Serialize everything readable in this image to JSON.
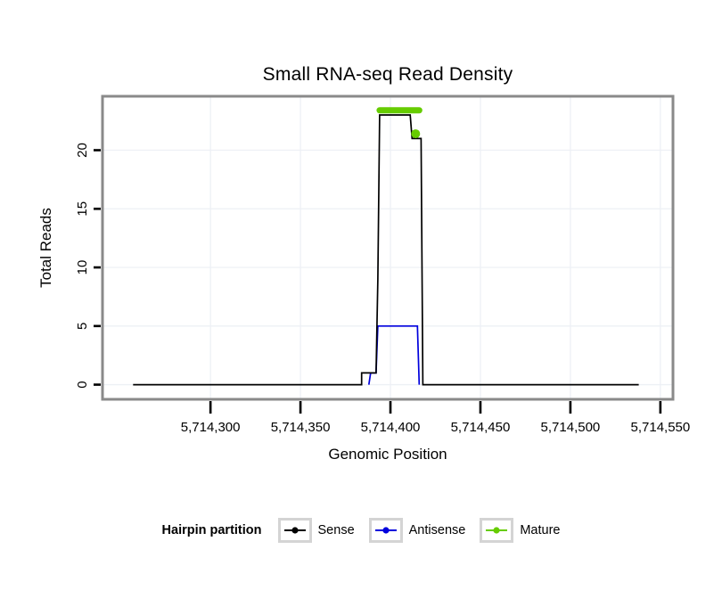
{
  "chart_data": {
    "type": "line",
    "title": "Small RNA-seq Read Density",
    "xlabel": "Genomic Position",
    "ylabel": "Total Reads",
    "xlim": [
      5714240,
      5714557
    ],
    "ylim": [
      -1.25,
      24.6
    ],
    "grid": true,
    "grid_color": "#edf0f5",
    "panel_border_color": "#8a8a8a",
    "x_ticks": [
      {
        "value": 5714300,
        "label": "5,714,300"
      },
      {
        "value": 5714350,
        "label": "5,714,350"
      },
      {
        "value": 5714400,
        "label": "5,714,400"
      },
      {
        "value": 5714450,
        "label": "5,714,450"
      },
      {
        "value": 5714500,
        "label": "5,714,500"
      },
      {
        "value": 5714550,
        "label": "5,714,550"
      }
    ],
    "y_ticks": [
      {
        "value": 0,
        "label": "0"
      },
      {
        "value": 5,
        "label": "5"
      },
      {
        "value": 10,
        "label": "10"
      },
      {
        "value": 15,
        "label": "15"
      },
      {
        "value": 20,
        "label": "20"
      }
    ],
    "series": [
      {
        "name": "Antisense",
        "type": "step-line",
        "color": "#0000dd",
        "points": [
          [
            5714388,
            0
          ],
          [
            5714389,
            1
          ],
          [
            5714392,
            1
          ],
          [
            5714393,
            5
          ],
          [
            5714415,
            5
          ],
          [
            5714416,
            0
          ]
        ]
      },
      {
        "name": "Sense",
        "type": "step-line",
        "color": "#000000",
        "points": [
          [
            5714257,
            0
          ],
          [
            5714384,
            0
          ],
          [
            5714384,
            1
          ],
          [
            5714392,
            1
          ],
          [
            5714393,
            9
          ],
          [
            5714394,
            23
          ],
          [
            5714411,
            23
          ],
          [
            5714412,
            21
          ],
          [
            5714417,
            21
          ],
          [
            5714418,
            0
          ],
          [
            5714538,
            0
          ]
        ]
      },
      {
        "name": "Mature",
        "type": "segment-point",
        "color": "#66cc00",
        "segment": {
          "x1": 5714394,
          "x2": 5714416,
          "y": 23.4
        },
        "point": {
          "x": 5714414,
          "y": 21.4
        }
      }
    ],
    "legend": {
      "title": "Hairpin partition",
      "position": "bottom",
      "entries": [
        {
          "label": "Sense",
          "color": "#000000"
        },
        {
          "label": "Antisense",
          "color": "#0000dd"
        },
        {
          "label": "Mature",
          "color": "#66cc00"
        }
      ]
    }
  }
}
